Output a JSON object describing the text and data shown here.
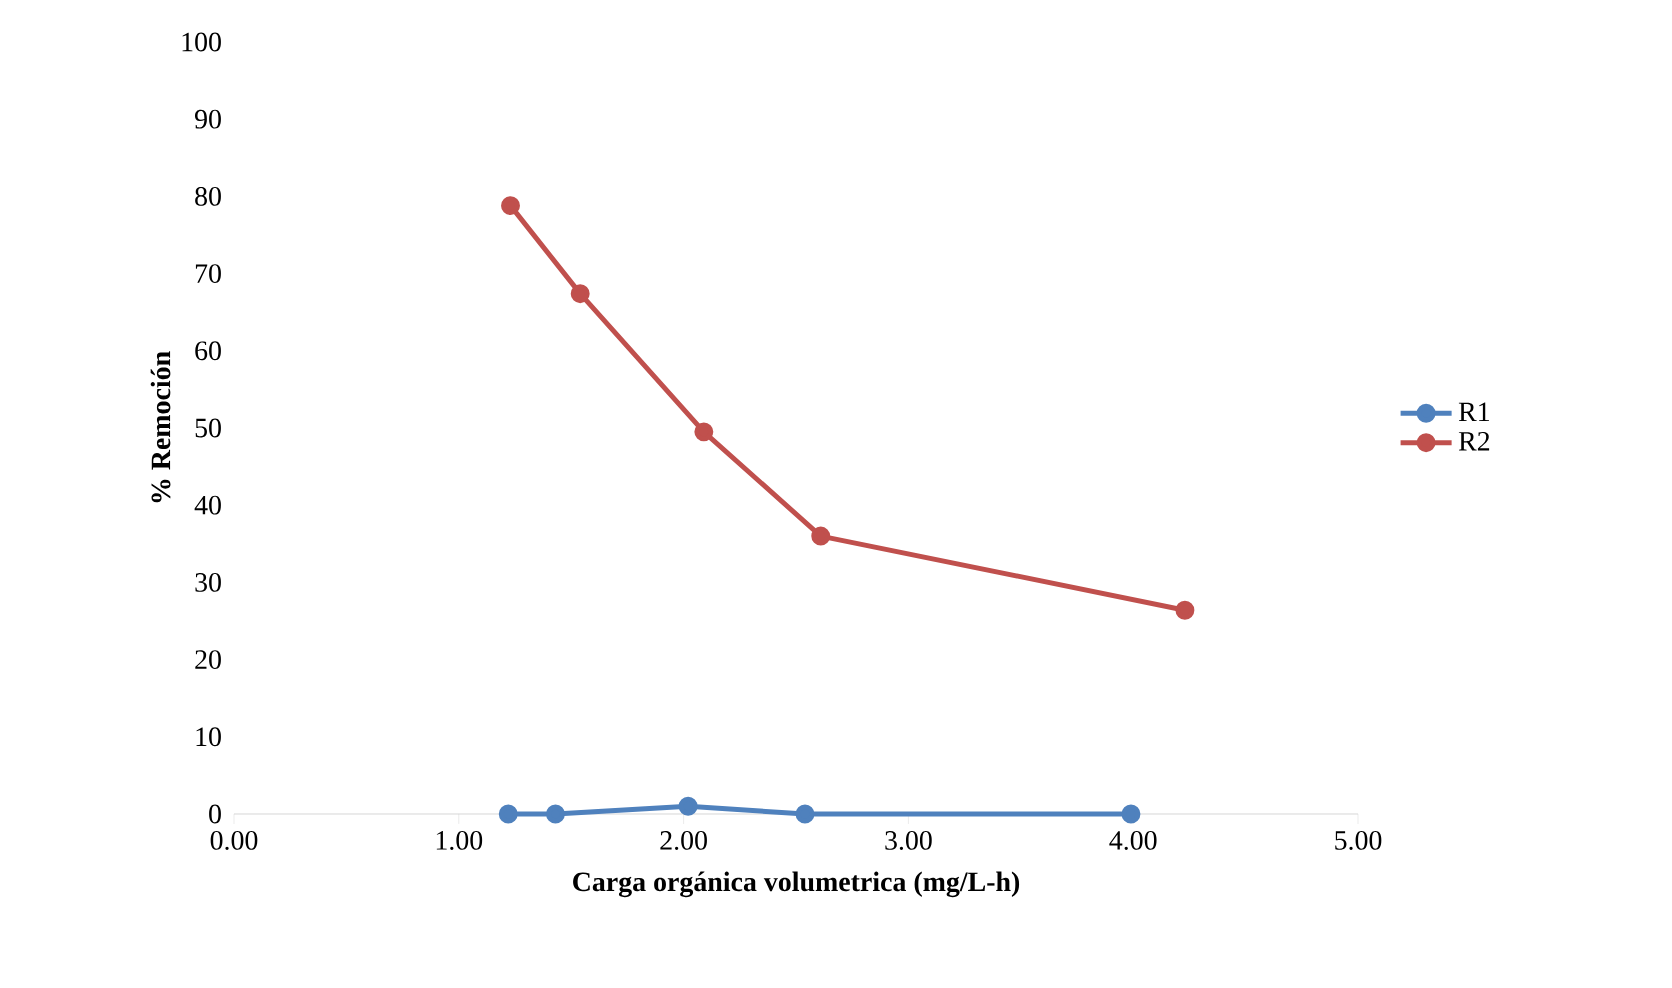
{
  "chart_data": {
    "type": "line",
    "xlabel": "Carga orgánica volumetrica (mg/L-h)",
    "ylabel": "% Remoción",
    "xlim": [
      0,
      5
    ],
    "xticks": [
      {
        "value": 0,
        "label": "0.00"
      },
      {
        "value": 1,
        "label": "1.00"
      },
      {
        "value": 2,
        "label": "2.00"
      },
      {
        "value": 3,
        "label": "3.00"
      },
      {
        "value": 4,
        "label": "4.00"
      },
      {
        "value": 5,
        "label": "5.00"
      }
    ],
    "ylim": [
      0,
      100
    ],
    "yticks": [
      0,
      10,
      20,
      30,
      40,
      50,
      60,
      70,
      80,
      90,
      100
    ],
    "legend": "right",
    "marker": "circle",
    "line_style": "solid",
    "grid": false,
    "series": [
      {
        "name": "R1",
        "color": "#4f81bd",
        "x": [
          1.22,
          1.43,
          2.02,
          2.54,
          3.99
        ],
        "values": [
          0,
          0,
          1.0,
          0,
          0
        ]
      },
      {
        "name": "R2",
        "color": "#c0504d",
        "x": [
          1.23,
          1.54,
          2.09,
          2.61,
          4.23
        ],
        "values": [
          78.8,
          67.4,
          49.5,
          36.0,
          26.4
        ]
      }
    ]
  }
}
